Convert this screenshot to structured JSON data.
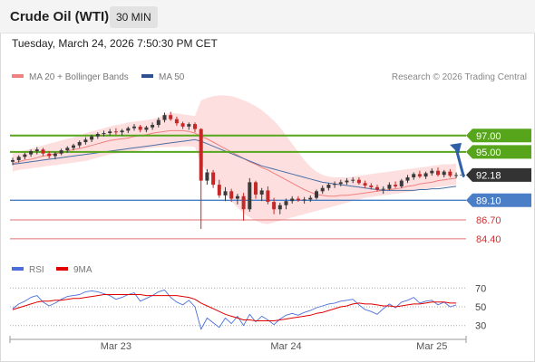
{
  "header": {
    "title": "Crude Oil (WTI)",
    "timeframe": "30 MIN"
  },
  "datetime": "Tuesday, March 24, 2026 7:50:30 PM CET",
  "credit": "Research © 2026 Trading Central",
  "colors": {
    "up": "#3a3a3a",
    "down": "#c62828",
    "ma20": "#f08080",
    "band": "#fcd4d4",
    "ma50": "#4a6fa5",
    "resistance": "#56a51b",
    "pivot": "#4a7fc7",
    "support": "#e07070",
    "current": "#333333",
    "arrow": "#2f5fa6",
    "rsi": "#4a6fdb",
    "rsi_ma": "#e00000"
  },
  "chart_data": [
    {
      "type": "candlestick",
      "title": "Crude Oil (WTI)",
      "timeframe": "30 MIN",
      "y_range": [
        83.5,
        102.5
      ],
      "x_ticks": [
        "Mar 23",
        "Mar 24",
        "Mar 25"
      ],
      "legend": [
        "MA 20 + Bollinger Bands",
        "MA 50"
      ],
      "legend_placement": "top-left",
      "ohlc": [
        [
          93.8,
          94.3,
          93.4,
          94.0
        ],
        [
          94.0,
          94.6,
          93.7,
          94.4
        ],
        [
          94.4,
          94.9,
          94.1,
          94.7
        ],
        [
          94.7,
          95.3,
          94.4,
          95.1
        ],
        [
          95.1,
          95.6,
          94.7,
          95.3
        ],
        [
          95.3,
          95.5,
          94.5,
          94.8
        ],
        [
          94.8,
          95.1,
          94.2,
          94.5
        ],
        [
          94.5,
          95.0,
          94.1,
          94.8
        ],
        [
          94.8,
          95.4,
          94.6,
          95.2
        ],
        [
          95.2,
          95.7,
          94.9,
          95.5
        ],
        [
          95.5,
          96.0,
          95.2,
          95.8
        ],
        [
          95.8,
          96.4,
          95.5,
          96.2
        ],
        [
          96.2,
          96.8,
          95.9,
          96.5
        ],
        [
          96.5,
          97.1,
          96.2,
          96.9
        ],
        [
          96.9,
          97.4,
          96.6,
          97.2
        ],
        [
          97.2,
          97.6,
          96.9,
          97.3
        ],
        [
          97.3,
          97.8,
          97.0,
          97.5
        ],
        [
          97.5,
          97.9,
          97.1,
          97.4
        ],
        [
          97.4,
          97.8,
          97.0,
          97.6
        ],
        [
          97.6,
          98.1,
          97.3,
          97.9
        ],
        [
          97.9,
          98.4,
          97.6,
          98.1
        ],
        [
          98.1,
          98.3,
          97.4,
          97.7
        ],
        [
          97.7,
          98.2,
          97.4,
          98.0
        ],
        [
          98.0,
          98.6,
          97.7,
          98.3
        ],
        [
          98.3,
          99.2,
          98.0,
          98.9
        ],
        [
          98.9,
          99.8,
          98.6,
          99.5
        ],
        [
          99.5,
          99.9,
          98.8,
          99.0
        ],
        [
          99.0,
          99.3,
          98.2,
          98.5
        ],
        [
          98.5,
          98.7,
          97.8,
          98.1
        ],
        [
          98.1,
          98.6,
          97.7,
          98.4
        ],
        [
          98.4,
          98.6,
          97.4,
          97.8
        ],
        [
          97.8,
          97.9,
          85.6,
          91.5
        ],
        [
          91.5,
          92.9,
          91.0,
          92.5
        ],
        [
          92.5,
          92.8,
          90.6,
          91.0
        ],
        [
          91.0,
          91.6,
          89.4,
          89.7
        ],
        [
          89.7,
          90.7,
          89.0,
          90.2
        ],
        [
          90.2,
          90.5,
          88.9,
          89.3
        ],
        [
          89.3,
          89.9,
          88.6,
          89.6
        ],
        [
          89.6,
          90.0,
          86.6,
          88.0
        ],
        [
          88.0,
          91.8,
          87.7,
          91.3
        ],
        [
          91.3,
          91.5,
          89.3,
          89.8
        ],
        [
          89.8,
          90.6,
          89.0,
          90.3
        ],
        [
          90.3,
          90.8,
          88.6,
          88.9
        ],
        [
          88.9,
          89.4,
          87.4,
          88.0
        ],
        [
          88.0,
          88.8,
          87.4,
          88.5
        ],
        [
          88.5,
          89.3,
          88.0,
          89.0
        ],
        [
          89.0,
          89.6,
          88.7,
          89.3
        ],
        [
          89.3,
          89.6,
          88.9,
          89.1
        ],
        [
          89.1,
          89.5,
          88.7,
          89.2
        ],
        [
          89.2,
          89.7,
          88.9,
          89.4
        ],
        [
          89.4,
          90.4,
          89.2,
          90.2
        ],
        [
          90.2,
          90.9,
          89.9,
          90.6
        ],
        [
          90.6,
          91.2,
          90.3,
          91.0
        ],
        [
          91.0,
          91.4,
          90.6,
          91.1
        ],
        [
          91.1,
          91.6,
          90.8,
          91.3
        ],
        [
          91.3,
          91.8,
          91.0,
          91.5
        ],
        [
          91.5,
          91.9,
          91.2,
          91.6
        ],
        [
          91.6,
          91.9,
          91.0,
          91.2
        ],
        [
          91.2,
          91.5,
          90.6,
          90.9
        ],
        [
          90.9,
          91.2,
          90.4,
          90.7
        ],
        [
          90.7,
          91.0,
          90.2,
          90.4
        ],
        [
          90.4,
          90.8,
          89.9,
          90.5
        ],
        [
          90.5,
          91.3,
          90.3,
          91.0
        ],
        [
          91.0,
          91.4,
          90.6,
          90.8
        ],
        [
          90.8,
          91.7,
          90.6,
          91.5
        ],
        [
          91.5,
          92.2,
          91.2,
          91.9
        ],
        [
          91.9,
          92.5,
          91.6,
          92.3
        ],
        [
          92.3,
          92.7,
          91.8,
          92.0
        ],
        [
          92.0,
          92.6,
          91.7,
          92.4
        ],
        [
          92.4,
          93.0,
          92.1,
          92.7
        ],
        [
          92.7,
          93.1,
          92.0,
          92.2
        ],
        [
          92.2,
          92.8,
          91.9,
          92.6
        ],
        [
          92.6,
          92.9,
          91.9,
          92.1
        ],
        [
          92.1,
          92.5,
          91.8,
          92.18
        ]
      ],
      "ma20": [
        93.6,
        93.8,
        94.0,
        94.1,
        94.3,
        94.5,
        94.6,
        94.8,
        94.9,
        95.1,
        95.3,
        95.4,
        95.6,
        95.8,
        96.0,
        96.2,
        96.4,
        96.5,
        96.6,
        96.7,
        96.9,
        97.0,
        97.1,
        97.3,
        97.4,
        97.5,
        97.6,
        97.6,
        97.6,
        97.5,
        97.3,
        96.9,
        96.6,
        96.2,
        95.8,
        95.4,
        95.0,
        94.6,
        94.2,
        93.8,
        93.5,
        93.1,
        92.8,
        92.4,
        92.0,
        91.6,
        91.2,
        90.8,
        90.4,
        90.1,
        89.8,
        89.7,
        89.6,
        89.6,
        89.7,
        89.7,
        89.8,
        89.9,
        90.0,
        90.1,
        90.2,
        90.3,
        90.4,
        90.5,
        90.6,
        90.8,
        90.9,
        91.1,
        91.2,
        91.3,
        91.5,
        91.6,
        91.7,
        91.8
      ],
      "bb_upper": [
        94.8,
        95.0,
        95.2,
        95.4,
        95.6,
        95.8,
        96.0,
        96.2,
        96.4,
        96.6,
        96.8,
        97.0,
        97.3,
        97.5,
        97.7,
        97.9,
        98.1,
        98.3,
        98.4,
        98.6,
        98.7,
        98.8,
        98.9,
        99.0,
        99.2,
        99.6,
        99.7,
        99.7,
        99.6,
        99.5,
        99.4,
        101.3,
        101.6,
        101.8,
        101.9,
        101.9,
        101.8,
        101.6,
        101.3,
        101.0,
        100.6,
        100.1,
        99.5,
        98.8,
        98.0,
        97.0,
        96.0,
        95.0,
        94.0,
        93.2,
        92.6,
        92.2,
        92.0,
        91.9,
        91.9,
        91.9,
        92.0,
        92.1,
        92.2,
        92.3,
        92.4,
        92.5,
        92.6,
        92.7,
        92.8,
        92.9,
        93.0,
        93.1,
        93.2,
        93.3,
        93.4,
        93.5,
        93.5,
        93.6
      ],
      "bb_lower": [
        92.6,
        92.8,
        92.9,
        93.0,
        93.1,
        93.2,
        93.3,
        93.4,
        93.5,
        93.6,
        93.7,
        93.8,
        93.9,
        94.1,
        94.3,
        94.5,
        94.7,
        94.8,
        94.9,
        95.0,
        95.1,
        95.2,
        95.4,
        95.5,
        95.6,
        95.6,
        95.6,
        95.6,
        95.7,
        95.7,
        95.6,
        93.5,
        92.6,
        91.7,
        90.8,
        89.9,
        89.0,
        88.2,
        87.5,
        87.0,
        86.6,
        86.3,
        86.2,
        86.4,
        86.6,
        86.8,
        87.0,
        87.2,
        87.4,
        87.6,
        87.8,
        88.0,
        88.2,
        88.4,
        88.6,
        88.8,
        89.0,
        89.2,
        89.4,
        89.5,
        89.6,
        89.7,
        89.8,
        89.9,
        90.0,
        90.1,
        90.2,
        90.4,
        90.5,
        90.6,
        90.7,
        90.8,
        90.9,
        91.0
      ],
      "ma50": [
        93.5,
        93.6,
        93.7,
        93.8,
        93.9,
        94.0,
        94.1,
        94.2,
        94.3,
        94.4,
        94.5,
        94.6,
        94.7,
        94.8,
        94.9,
        95.0,
        95.1,
        95.2,
        95.3,
        95.4,
        95.5,
        95.6,
        95.7,
        95.8,
        95.9,
        96.0,
        96.1,
        96.2,
        96.3,
        96.4,
        96.5,
        96.3,
        96.0,
        95.7,
        95.4,
        95.1,
        94.8,
        94.5,
        94.2,
        93.9,
        93.6,
        93.3,
        93.1,
        92.9,
        92.7,
        92.5,
        92.3,
        92.1,
        91.9,
        91.7,
        91.5,
        91.3,
        91.2,
        91.1,
        91.0,
        90.9,
        90.8,
        90.7,
        90.6,
        90.5,
        90.4,
        90.3,
        90.3,
        90.3,
        90.3,
        90.3,
        90.3,
        90.4,
        90.4,
        90.5,
        90.5,
        90.6,
        90.7,
        90.8
      ],
      "levels": [
        {
          "label": "97.00",
          "value": 97.0,
          "kind": "resistance"
        },
        {
          "label": "95.00",
          "value": 95.0,
          "kind": "resistance"
        },
        {
          "label": "92.18",
          "value": 92.18,
          "kind": "current"
        },
        {
          "label": "89.10",
          "value": 89.1,
          "kind": "pivot"
        },
        {
          "label": "86.70",
          "value": 86.7,
          "kind": "support"
        },
        {
          "label": "84.40",
          "value": 84.4,
          "kind": "support"
        }
      ],
      "arrow": {
        "direction": "up",
        "from": 92.18,
        "to": 96.1
      }
    },
    {
      "type": "line",
      "legend": [
        "RSI",
        "9MA"
      ],
      "legend_placement": "top-left",
      "y_range": [
        22,
        78
      ],
      "y_ticks": [
        "70",
        "50",
        "30"
      ],
      "rsi": [
        48,
        53,
        56,
        60,
        62,
        55,
        51,
        54,
        58,
        61,
        62,
        63,
        66,
        67,
        66,
        64,
        62,
        58,
        60,
        63,
        65,
        56,
        59,
        62,
        66,
        68,
        60,
        55,
        52,
        57,
        50,
        26,
        38,
        33,
        28,
        38,
        32,
        40,
        30,
        42,
        34,
        40,
        36,
        31,
        37,
        41,
        43,
        41,
        44,
        46,
        49,
        51,
        53,
        54,
        56,
        57,
        58,
        52,
        47,
        45,
        42,
        48,
        53,
        49,
        55,
        57,
        60,
        54,
        56,
        57,
        52,
        55,
        50,
        52
      ],
      "rsi_ma": [
        47,
        49,
        51,
        53,
        55,
        56,
        56,
        57,
        57,
        58,
        59,
        59,
        60,
        61,
        62,
        63,
        63,
        63,
        63,
        63,
        63,
        63,
        62,
        62,
        62,
        62,
        62,
        62,
        61,
        60,
        58,
        54,
        51,
        48,
        45,
        42,
        40,
        38,
        36,
        36,
        35,
        35,
        35,
        35,
        36,
        37,
        38,
        39,
        40,
        41,
        43,
        44,
        46,
        48,
        50,
        51,
        53,
        54,
        53,
        53,
        52,
        51,
        51,
        50,
        51,
        52,
        53,
        53,
        54,
        55,
        55,
        55,
        54,
        54
      ]
    }
  ]
}
